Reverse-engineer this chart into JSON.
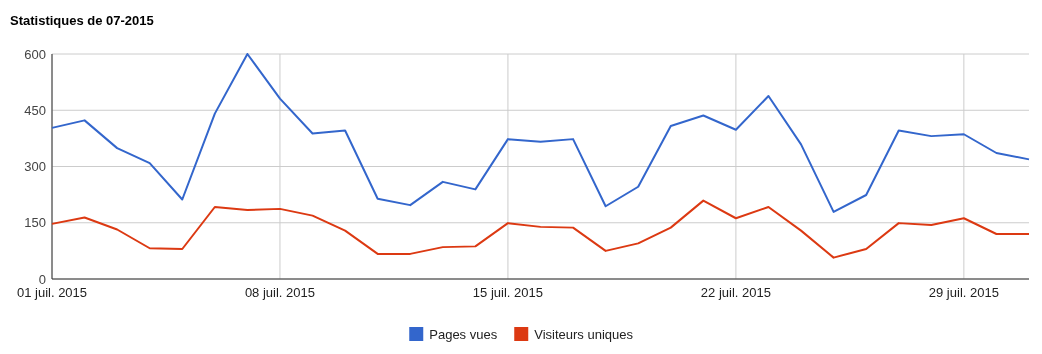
{
  "chart_data": {
    "type": "line",
    "title": "Statistiques de 07-2015",
    "x": [
      "2015-07-01",
      "2015-07-02",
      "2015-07-03",
      "2015-07-04",
      "2015-07-05",
      "2015-07-06",
      "2015-07-07",
      "2015-07-08",
      "2015-07-09",
      "2015-07-10",
      "2015-07-11",
      "2015-07-12",
      "2015-07-13",
      "2015-07-14",
      "2015-07-15",
      "2015-07-16",
      "2015-07-17",
      "2015-07-18",
      "2015-07-19",
      "2015-07-20",
      "2015-07-21",
      "2015-07-22",
      "2015-07-23",
      "2015-07-24",
      "2015-07-25",
      "2015-07-26",
      "2015-07-27",
      "2015-07-28",
      "2015-07-29",
      "2015-07-30",
      "2015-07-31"
    ],
    "series": [
      {
        "name": "Pages vues",
        "color": "#3366cc",
        "values": [
          403,
          423,
          349,
          309,
          212,
          441,
          600,
          481,
          388,
          396,
          214,
          197,
          259,
          239,
          373,
          366,
          373,
          194,
          246,
          408,
          436,
          398,
          488,
          359,
          179,
          224,
          396,
          381,
          386,
          336,
          319
        ]
      },
      {
        "name": "Visiteurs uniques",
        "color": "#dc3912",
        "values": [
          147,
          164,
          132,
          82,
          80,
          192,
          184,
          187,
          169,
          129,
          67,
          67,
          85,
          87,
          149,
          139,
          137,
          75,
          95,
          137,
          209,
          162,
          192,
          129,
          57,
          80,
          149,
          144,
          162,
          120,
          120
        ]
      }
    ],
    "xlim": [
      "2015-07-01",
      "2015-07-31"
    ],
    "xticks": [
      {
        "value": "2015-07-01",
        "label": "01 juil. 2015"
      },
      {
        "value": "2015-07-08",
        "label": "08 juil. 2015"
      },
      {
        "value": "2015-07-15",
        "label": "15 juil. 2015"
      },
      {
        "value": "2015-07-22",
        "label": "22 juil. 2015"
      },
      {
        "value": "2015-07-29",
        "label": "29 juil. 2015"
      }
    ],
    "ylim": [
      0,
      600
    ],
    "yticks": [
      0,
      150,
      300,
      450,
      600
    ],
    "grid": true,
    "legend": "bottom",
    "marker": "none",
    "line_style": "solid"
  }
}
